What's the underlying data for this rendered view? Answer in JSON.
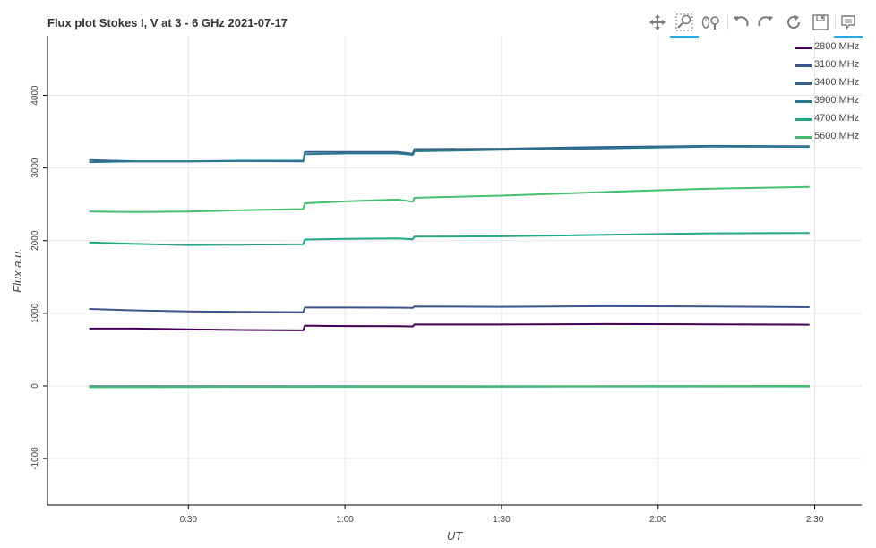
{
  "chart_data": {
    "type": "line",
    "title": "Flux plot Stokes I, V at 3 - 6 GHz 2021-07-17",
    "xlabel": "UT",
    "ylabel": "Flux a.u.",
    "x_ticks": [
      "0:30",
      "1:00",
      "1:30",
      "2:00",
      "2:30"
    ],
    "x_tick_values": [
      30,
      60,
      90,
      120,
      150
    ],
    "y_ticks": [
      "-1000",
      "0",
      "1000",
      "2000",
      "3000",
      "4000"
    ],
    "y_tick_values": [
      -1000,
      0,
      1000,
      2000,
      3000,
      4000
    ],
    "xlim": [
      3,
      159
    ],
    "ylim": [
      -1640,
      4820
    ],
    "grid": true,
    "legend_position": "top-right",
    "x_unit_note": "minutes",
    "series": [
      {
        "name": "2800 MHz",
        "color": "#440154",
        "points": [
          [
            11,
            790
          ],
          [
            20,
            790
          ],
          [
            30,
            780
          ],
          [
            40,
            770
          ],
          [
            52,
            765
          ],
          [
            52.3,
            830
          ],
          [
            60,
            825
          ],
          [
            70,
            822
          ],
          [
            73,
            820
          ],
          [
            73.3,
            845
          ],
          [
            90,
            845
          ],
          [
            110,
            852
          ],
          [
            130,
            848
          ],
          [
            149,
            843
          ]
        ],
        "v_points": [
          [
            11,
            -5
          ],
          [
            149,
            -5
          ]
        ]
      },
      {
        "name": "3100 MHz",
        "color": "#3b528b",
        "points": [
          [
            11,
            1060
          ],
          [
            20,
            1040
          ],
          [
            30,
            1025
          ],
          [
            40,
            1020
          ],
          [
            52,
            1015
          ],
          [
            52.3,
            1080
          ],
          [
            60,
            1080
          ],
          [
            70,
            1078
          ],
          [
            73,
            1075
          ],
          [
            73.3,
            1095
          ],
          [
            90,
            1090
          ],
          [
            110,
            1098
          ],
          [
            130,
            1095
          ],
          [
            149,
            1085
          ]
        ],
        "v_points": [
          [
            11,
            -8
          ],
          [
            149,
            -5
          ]
        ]
      },
      {
        "name": "3400 MHz",
        "color": "#355f8d",
        "points": [
          [
            11,
            3110
          ],
          [
            20,
            3090
          ],
          [
            30,
            3090
          ],
          [
            40,
            3095
          ],
          [
            52,
            3090
          ],
          [
            52.3,
            3220
          ],
          [
            60,
            3220
          ],
          [
            70,
            3220
          ],
          [
            73,
            3195
          ],
          [
            73.3,
            3260
          ],
          [
            90,
            3265
          ],
          [
            110,
            3290
          ],
          [
            130,
            3305
          ],
          [
            149,
            3300
          ]
        ],
        "v_points": [
          [
            11,
            -10
          ],
          [
            149,
            -5
          ]
        ]
      },
      {
        "name": "3900 MHz",
        "color": "#2a788e",
        "points": [
          [
            11,
            3080
          ],
          [
            20,
            3090
          ],
          [
            30,
            3090
          ],
          [
            40,
            3100
          ],
          [
            52,
            3100
          ],
          [
            52.3,
            3190
          ],
          [
            60,
            3200
          ],
          [
            70,
            3200
          ],
          [
            73,
            3180
          ],
          [
            73.3,
            3230
          ],
          [
            90,
            3250
          ],
          [
            110,
            3270
          ],
          [
            130,
            3295
          ],
          [
            149,
            3290
          ]
        ],
        "v_points": [
          [
            11,
            -12
          ],
          [
            149,
            -6
          ]
        ]
      },
      {
        "name": "4700 MHz",
        "color": "#22a884",
        "points": [
          [
            11,
            1975
          ],
          [
            20,
            1955
          ],
          [
            30,
            1940
          ],
          [
            40,
            1945
          ],
          [
            52,
            1950
          ],
          [
            52.3,
            2015
          ],
          [
            60,
            2025
          ],
          [
            70,
            2030
          ],
          [
            73,
            2020
          ],
          [
            73.3,
            2055
          ],
          [
            90,
            2060
          ],
          [
            110,
            2080
          ],
          [
            130,
            2100
          ],
          [
            149,
            2105
          ]
        ],
        "v_points": [
          [
            11,
            -15
          ],
          [
            149,
            -3
          ]
        ]
      },
      {
        "name": "5600 MHz",
        "color": "#44bf70",
        "points": [
          [
            11,
            2400
          ],
          [
            20,
            2395
          ],
          [
            30,
            2400
          ],
          [
            40,
            2420
          ],
          [
            52,
            2435
          ],
          [
            52.3,
            2515
          ],
          [
            60,
            2540
          ],
          [
            70,
            2565
          ],
          [
            73,
            2535
          ],
          [
            73.3,
            2590
          ],
          [
            90,
            2620
          ],
          [
            110,
            2670
          ],
          [
            130,
            2715
          ],
          [
            149,
            2740
          ]
        ],
        "v_points": [
          [
            11,
            -18
          ],
          [
            149,
            -2
          ]
        ]
      }
    ]
  },
  "toolbar": {
    "pan_icon": "pan-icon",
    "box_zoom_icon": "box-zoom-icon",
    "wheel_zoom_icon": "wheel-zoom-icon",
    "undo_icon": "undo-icon",
    "redo_icon": "redo-icon",
    "reset_icon": "reset-icon",
    "save_icon": "save-icon",
    "hover_icon": "hover-icon"
  }
}
